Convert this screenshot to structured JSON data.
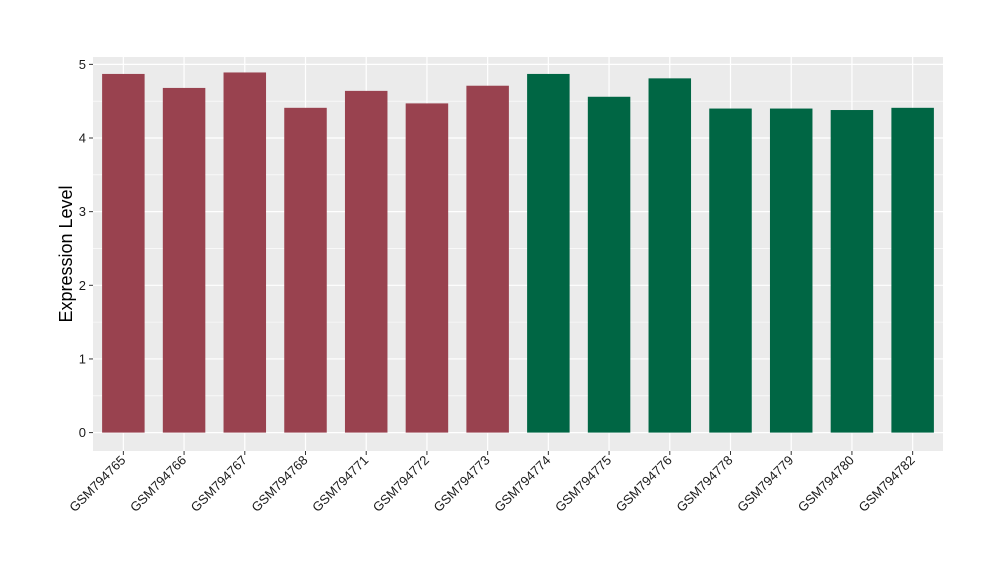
{
  "chart_data": {
    "type": "bar",
    "title": "",
    "xlabel": "",
    "ylabel": "Expression Level",
    "ylim": [
      -0.25,
      5.1
    ],
    "yticks": [
      0,
      1,
      2,
      3,
      4,
      5
    ],
    "grid": true,
    "legend": "none",
    "categories": [
      "GSM794765",
      "GSM794766",
      "GSM794767",
      "GSM794768",
      "GSM794771",
      "GSM794772",
      "GSM794773",
      "GSM794774",
      "GSM794775",
      "GSM794776",
      "GSM794778",
      "GSM794779",
      "GSM794780",
      "GSM794782"
    ],
    "values": [
      4.87,
      4.68,
      4.89,
      4.41,
      4.64,
      4.47,
      4.71,
      4.87,
      4.56,
      4.81,
      4.4,
      4.4,
      4.38,
      4.41
    ],
    "groups": [
      1,
      1,
      1,
      1,
      1,
      1,
      1,
      2,
      2,
      2,
      2,
      2,
      2,
      2
    ],
    "colors": {
      "group_1": "#99424F",
      "group_2": "#006644"
    },
    "panel_background": "#EBEBEB",
    "gridline_color": "#FFFFFF"
  }
}
